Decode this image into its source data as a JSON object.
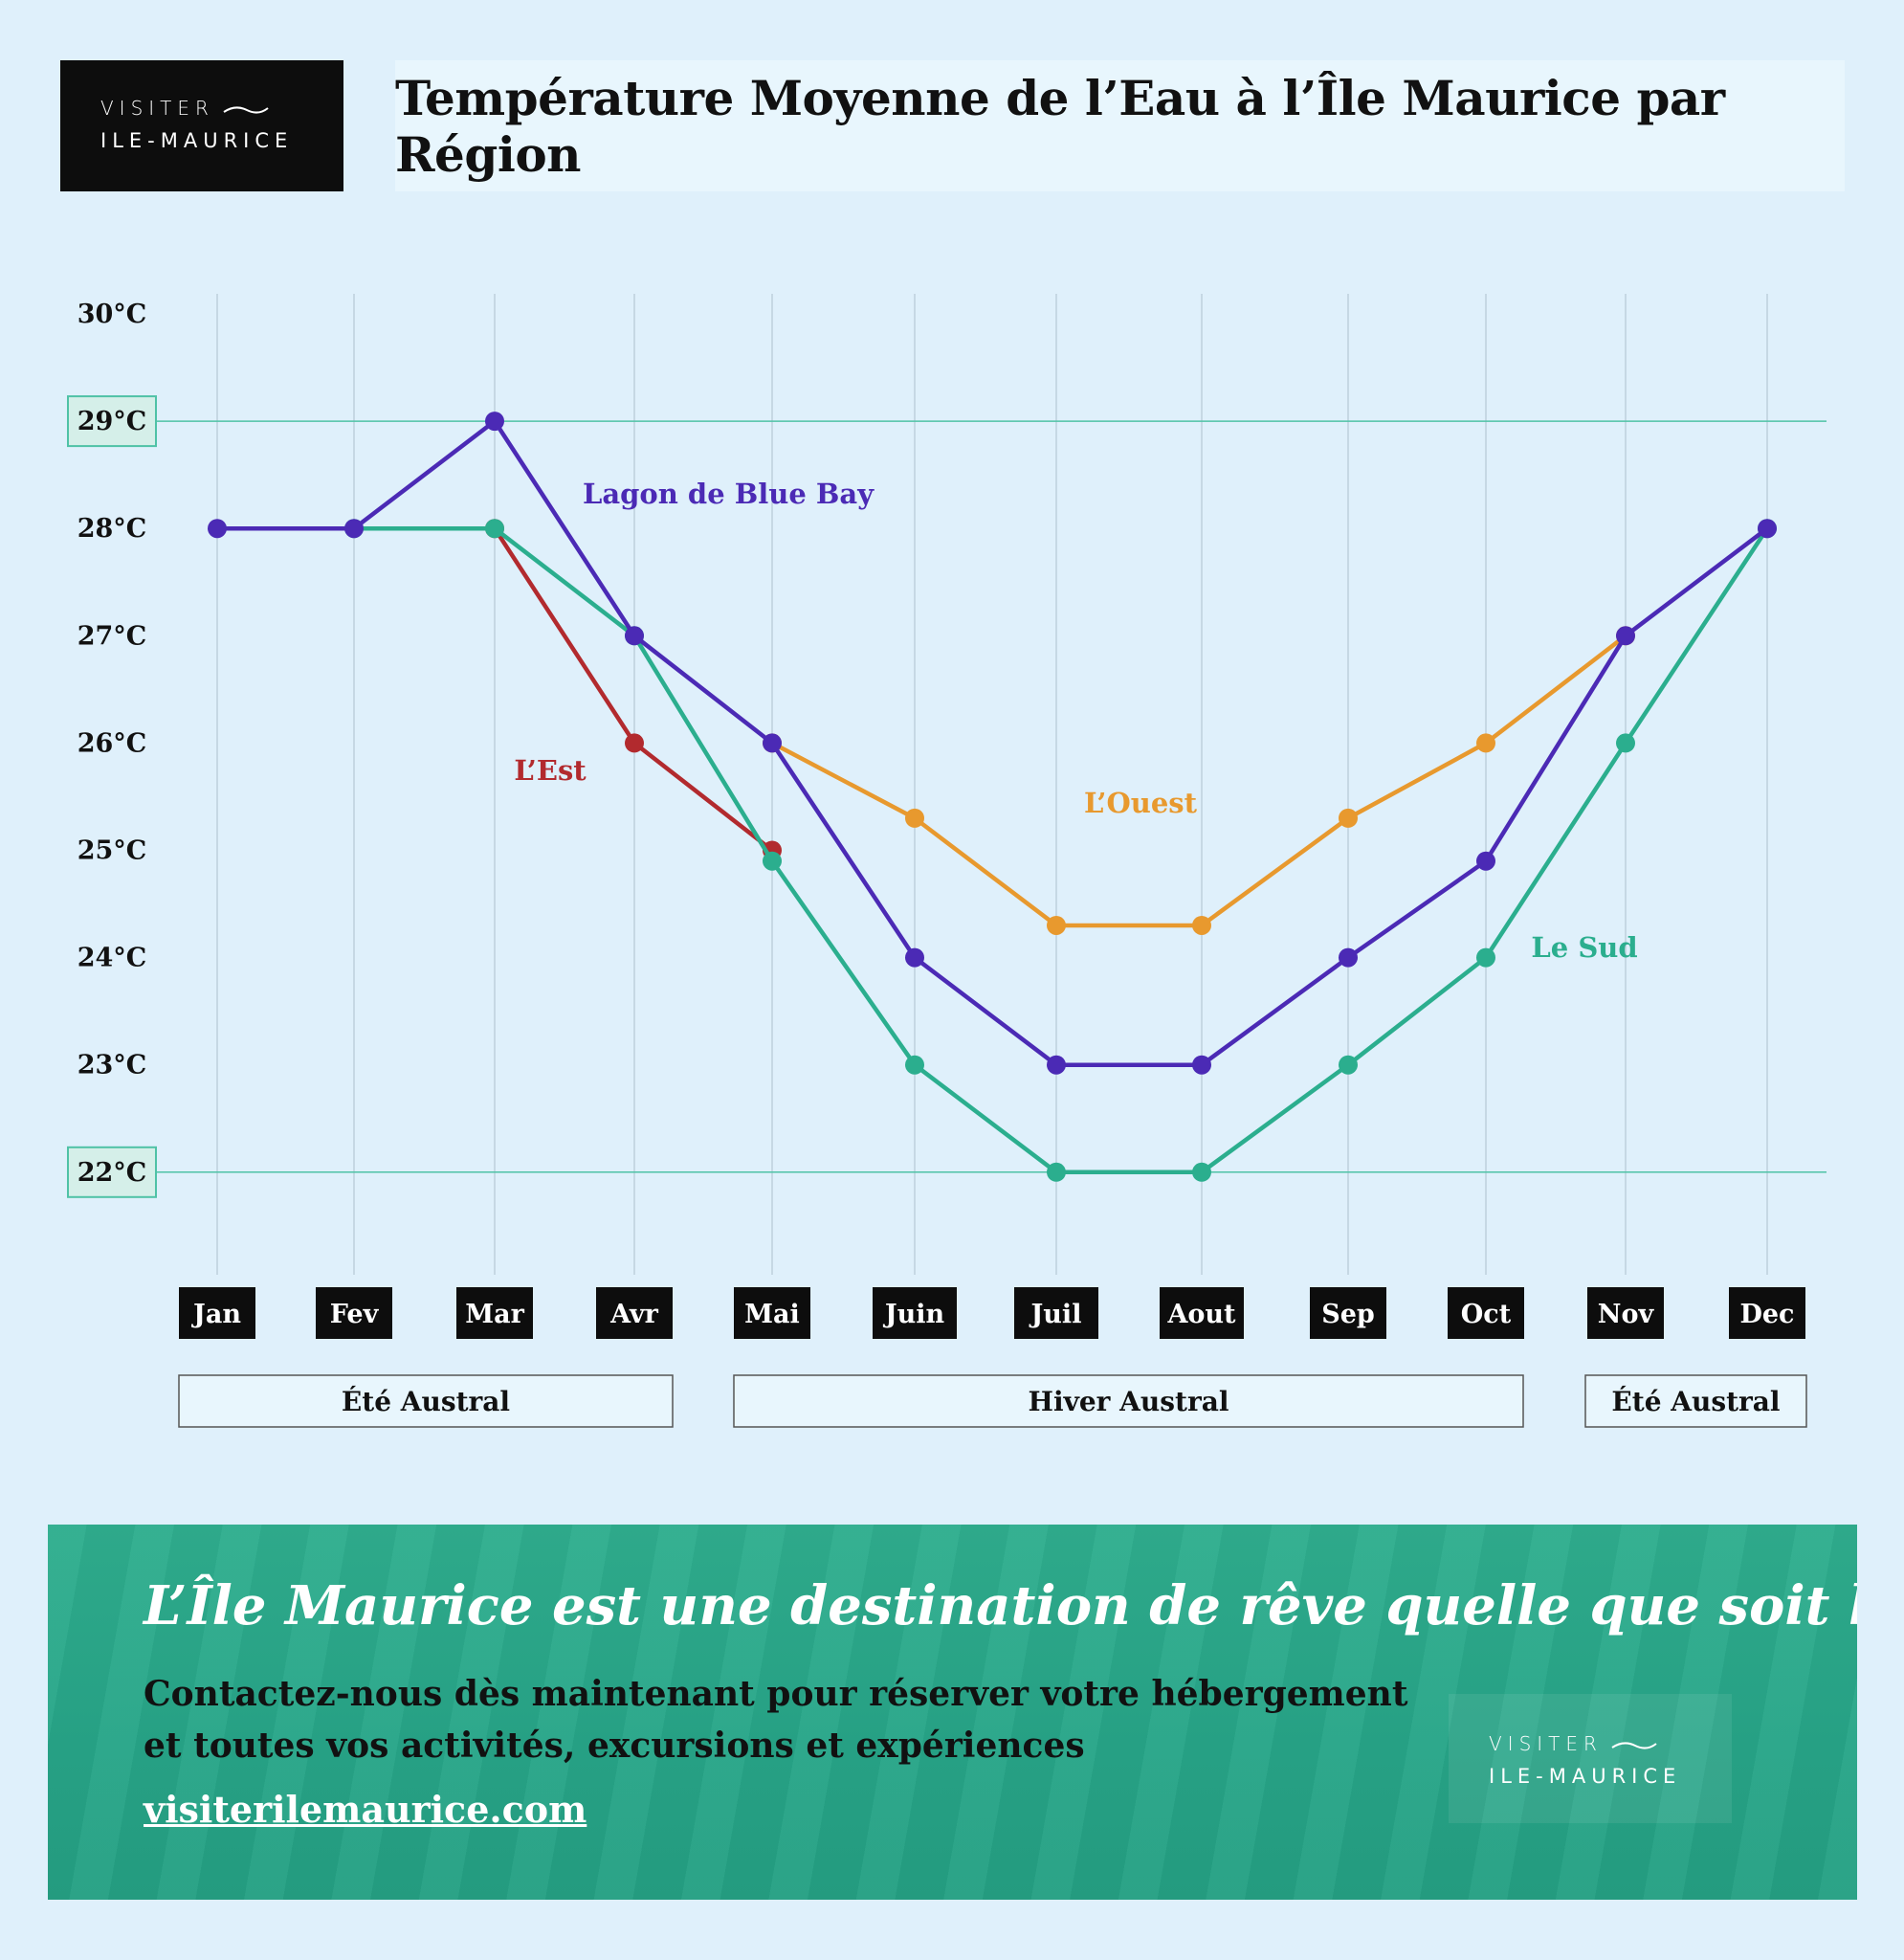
{
  "logo": {
    "line1": "VISITER",
    "line2": "ILE-MAURICE"
  },
  "title": "Température Moyenne de l’Eau à l’Île Maurice par Région",
  "chart_data": {
    "type": "line",
    "title": "Température Moyenne de l’Eau à l’Île Maurice par Région",
    "categories": [
      "Jan",
      "Fev",
      "Mar",
      "Avr",
      "Mai",
      "Juin",
      "Juil",
      "Aout",
      "Sep",
      "Oct",
      "Nov",
      "Dec"
    ],
    "y_ticks": [
      "30°C",
      "29°C",
      "28°C",
      "27°C",
      "26°C",
      "25°C",
      "24°C",
      "23°C",
      "22°C"
    ],
    "y_tick_values": [
      30,
      29,
      28,
      27,
      26,
      25,
      24,
      23,
      22
    ],
    "highlighted_ticks": [
      29,
      22
    ],
    "ylim": [
      22,
      30
    ],
    "grid": "vertical",
    "series": [
      {
        "name": "L’Est",
        "color": "#b22a2e",
        "values": [
          null,
          null,
          28,
          26,
          25,
          null,
          null,
          null,
          null,
          null,
          null,
          null
        ]
      },
      {
        "name": "L’Ouest",
        "color": "#e8992e",
        "values": [
          null,
          null,
          null,
          null,
          26,
          25.3,
          24.3,
          24.3,
          25.3,
          26,
          27,
          null
        ]
      },
      {
        "name": "Le Sud",
        "color": "#2bae8e",
        "values": [
          null,
          28,
          28,
          27,
          24.9,
          23,
          22,
          22,
          23,
          24,
          26,
          28
        ]
      },
      {
        "name": "Lagon de Blue Bay",
        "color": "#4b2ab5",
        "values": [
          28,
          28,
          29,
          27,
          26,
          24,
          23,
          23,
          24,
          24.9,
          27,
          28
        ]
      }
    ],
    "seasons": [
      {
        "label": "Été Austral",
        "from": "Jan",
        "to": "Avr"
      },
      {
        "label": "Hiver Austral",
        "from": "Mai",
        "to": "Oct"
      },
      {
        "label": "Été Austral",
        "from": "Nov",
        "to": "Dec"
      }
    ]
  },
  "banner": {
    "headline": "L’Île Maurice est une destination de rêve quelle que soit la saison",
    "body_line1": "Contactez-nous dès maintenant pour réserver votre hébergement",
    "body_line2": "et toutes vos activités, excursions et expériences",
    "link": "visiterilemaurice.com",
    "logo": {
      "line1": "VISITER",
      "line2": "ILE-MAURICE"
    }
  }
}
